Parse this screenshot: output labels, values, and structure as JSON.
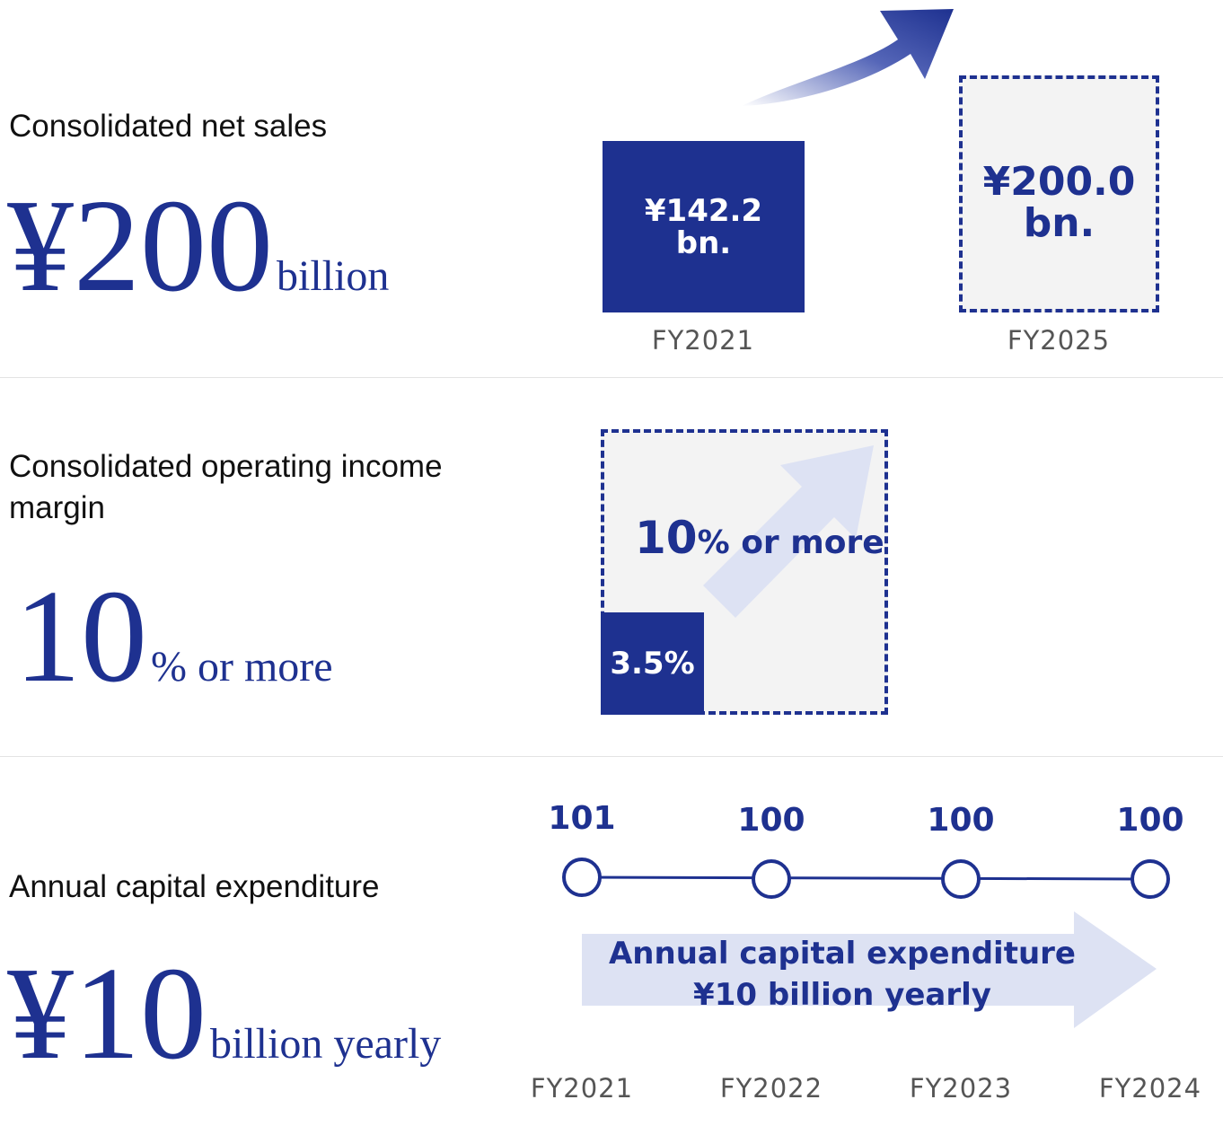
{
  "sales": {
    "label": "Consolidated net sales",
    "big_number": "¥200",
    "big_unit": "billion",
    "bar_fy2021_line1": "¥142.2",
    "bar_fy2021_line2": "bn.",
    "bar_fy2025_line1": "¥200.0",
    "bar_fy2025_line2": "bn.",
    "fy_left": "FY2021",
    "fy_right": "FY2025"
  },
  "margin": {
    "label_line1": "Consolidated operating income",
    "label_line2": "margin",
    "big_number": "10",
    "big_unit": "% or more",
    "target_num": "10",
    "target_rest": "% or more",
    "current": "3.5%"
  },
  "capex": {
    "label": "Annual capital expenditure",
    "big_number": "¥10",
    "big_unit": "billion yearly",
    "values": [
      "101",
      "100",
      "100",
      "100"
    ],
    "years": [
      "FY2021",
      "FY2022",
      "FY2023",
      "FY2024"
    ],
    "arrow_line1": "Annual capital expenditure",
    "arrow_line2": "¥10 billion yearly"
  },
  "colors": {
    "navy": "#1e3190",
    "light_blue": "#dde2f3",
    "box_gray": "#f3f3f3"
  }
}
